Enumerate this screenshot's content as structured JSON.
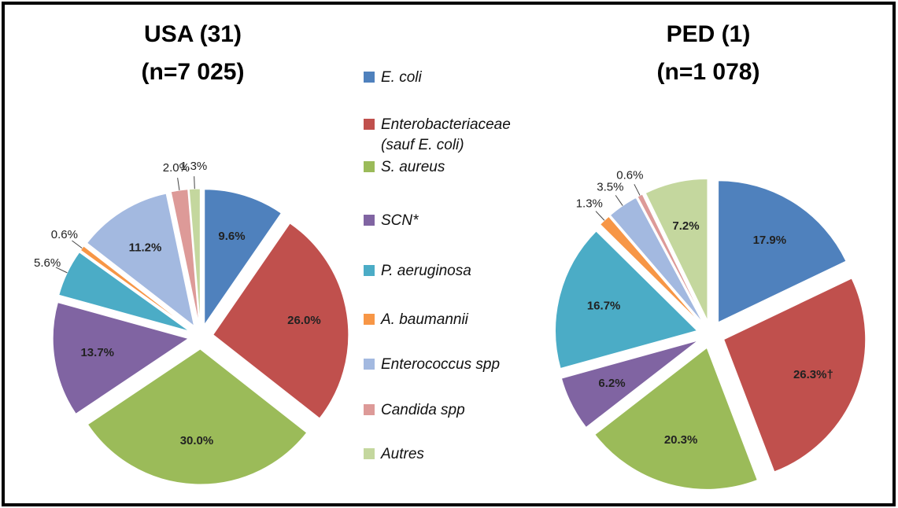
{
  "chart_data": {
    "type": "pie",
    "categories": [
      "E. coli",
      "Enterobacteriaceae (sauf E. coli)",
      "S. aureus",
      "SCN*",
      "P. aeruginosa",
      "A. baumannii",
      "Enterococcus spp",
      "Candida spp",
      "Autres"
    ],
    "colors": [
      "#4f81bd",
      "#c0504d",
      "#9bbb59",
      "#8064a2",
      "#4bacc6",
      "#f79646",
      "#a3b9e0",
      "#dd9a98",
      "#c4d79e"
    ],
    "series": [
      {
        "name": "USA (31)",
        "subtitle": "(n=7 025)",
        "values": [
          9.6,
          26.0,
          30.0,
          13.7,
          5.6,
          0.6,
          11.2,
          2.0,
          1.3
        ],
        "value_labels": [
          "9.6%",
          "26.0%",
          "30.0%",
          "13.7%",
          "5.6%",
          "0.6%",
          "11.2%",
          "2.0%",
          "1.3%"
        ]
      },
      {
        "name": "PED (1)",
        "subtitle": "(n=1 078)",
        "values": [
          17.9,
          26.3,
          20.3,
          6.2,
          16.7,
          1.3,
          3.5,
          0.6,
          7.2
        ],
        "value_labels": [
          "17.9%",
          "26.3%†",
          "20.3%",
          "6.2%",
          "16.7%",
          "1.3%",
          "3.5%",
          "0.6%",
          "7.2%"
        ]
      }
    ]
  }
}
